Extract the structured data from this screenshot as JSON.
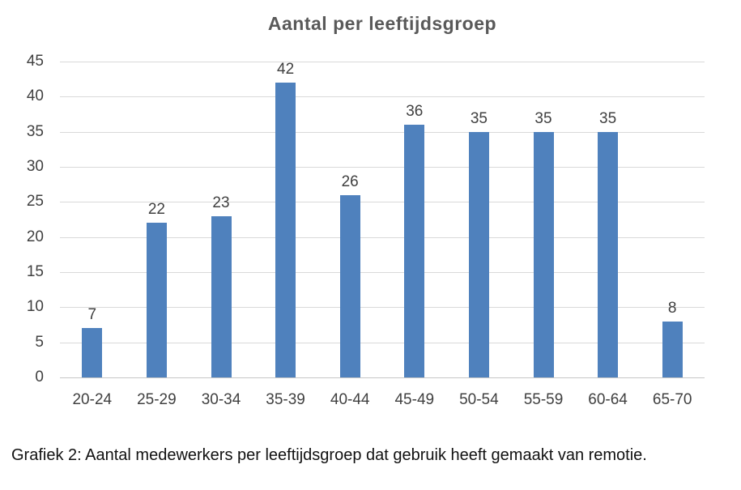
{
  "chart_data": {
    "type": "bar",
    "title": "Aantal per leeftijdsgroep",
    "categories": [
      "20-24",
      "25-29",
      "30-34",
      "35-39",
      "40-44",
      "45-49",
      "50-54",
      "55-59",
      "60-64",
      "65-70"
    ],
    "values": [
      7,
      22,
      23,
      42,
      26,
      36,
      35,
      35,
      35,
      8
    ],
    "xlabel": "",
    "ylabel": "",
    "ylim": [
      0,
      45
    ],
    "ytick_step": 5,
    "grid": true,
    "legend": false,
    "data_labels": true,
    "colors": {
      "bar": "#4f81bd",
      "gridline": "#d9d9d9",
      "axis_line": "#c6c6c6",
      "tick_text": "#404040",
      "title_text": "#595959",
      "caption_text": "#111111",
      "background": "#ffffff"
    }
  },
  "caption": "Grafiek 2: Aantal medewerkers per leeftijdsgroep dat gebruik heeft gemaakt van remotie."
}
